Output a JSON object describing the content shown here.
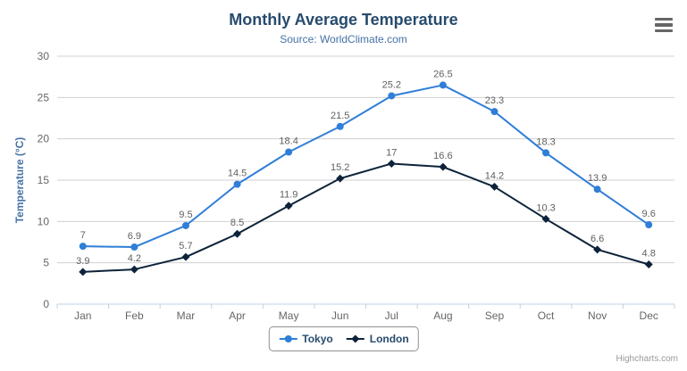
{
  "header": {
    "title": "Monthly Average Temperature",
    "subtitle": "Source: WorldClimate.com"
  },
  "icons": {
    "menu": "hamburger-icon"
  },
  "credits": {
    "text": "Highcharts.com"
  },
  "colors": {
    "title": "#274b6d",
    "subtitle": "#4572a7",
    "axis_title": "#4572a7",
    "axis_labels": "#666666",
    "data_labels": "#606060",
    "gridline": "#d0d0d0",
    "axis_line": "#c0d0e0",
    "legend_text": "#274b6d",
    "legend_border": "#909090",
    "credits_text": "#999999",
    "menu_icon": "#666666"
  },
  "chart_data": {
    "type": "line",
    "title": "Monthly Average Temperature",
    "subtitle": "Source: WorldClimate.com",
    "categories": [
      "Jan",
      "Feb",
      "Mar",
      "Apr",
      "May",
      "Jun",
      "Jul",
      "Aug",
      "Sep",
      "Oct",
      "Nov",
      "Dec"
    ],
    "series": [
      {
        "name": "Tokyo",
        "color": "#2f7ed8",
        "marker": "circle",
        "values": [
          7,
          6.9,
          9.5,
          14.5,
          18.4,
          21.5,
          25.2,
          26.5,
          23.3,
          18.3,
          13.9,
          9.6
        ]
      },
      {
        "name": "London",
        "color": "#0d233a",
        "marker": "diamond",
        "values": [
          3.9,
          4.2,
          5.7,
          8.5,
          11.9,
          15.2,
          17,
          16.6,
          14.2,
          10.3,
          6.6,
          4.8
        ]
      }
    ],
    "xlabel": "",
    "ylabel": "Temperature (°C)",
    "ylim": [
      0,
      30
    ],
    "ytick_interval": 5,
    "grid": true,
    "data_labels": true,
    "legend_position": "bottom"
  }
}
